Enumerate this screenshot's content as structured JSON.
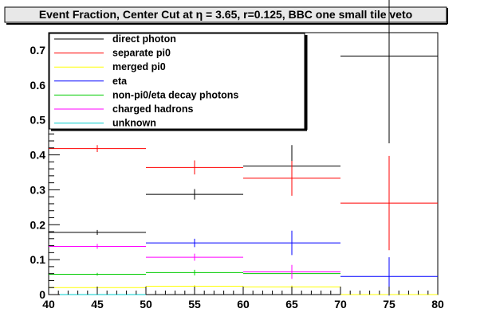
{
  "chart_data": {
    "type": "scatter",
    "title": "Event Fraction, Center Cut at η = 3.65, r=0.125, BBC one small tile veto",
    "xlabel": "",
    "ylabel": "",
    "xlim": [
      40,
      80
    ],
    "ylim": [
      0,
      0.75
    ],
    "x_ticks": [
      40,
      45,
      50,
      55,
      60,
      65,
      70,
      75,
      80
    ],
    "y_ticks": [
      0,
      0.1,
      0.2,
      0.3,
      0.4,
      0.5,
      0.6,
      0.7
    ],
    "x_tick_labels": [
      "40",
      "45",
      "50",
      "55",
      "60",
      "65",
      "70",
      "75",
      "80"
    ],
    "y_tick_labels": [
      "0",
      "0.1",
      "0.2",
      "0.3",
      "0.4",
      "0.5",
      "0.6",
      "0.7"
    ],
    "grid": false,
    "legend_position": "top-left",
    "bins": [
      {
        "x": 45,
        "xerr": 5
      },
      {
        "x": 55,
        "xerr": 5
      },
      {
        "x": 65,
        "xerr": 5
      },
      {
        "x": 75,
        "xerr": 5
      }
    ],
    "series": [
      {
        "name": "direct photon",
        "color": "#000000",
        "values": [
          0.178,
          0.287,
          0.368,
          0.683
        ],
        "errors": [
          0.007,
          0.015,
          0.06,
          0.25
        ]
      },
      {
        "name": "separate pi0",
        "color": "#ff0000",
        "values": [
          0.418,
          0.364,
          0.333,
          0.262
        ],
        "errors": [
          0.01,
          0.02,
          0.05,
          0.135
        ]
      },
      {
        "name": "merged pi0",
        "color": "#ffff00",
        "values": [
          0.02,
          0.024,
          0.022,
          0.0
        ],
        "errors": [
          0.003,
          0.003,
          0.004,
          0.0
        ]
      },
      {
        "name": "eta",
        "color": "#0000ff",
        "values": [
          null,
          0.148,
          0.148,
          0.052
        ],
        "errors": [
          0,
          0.012,
          0.035,
          0.055
        ]
      },
      {
        "name": "non-pi0/eta decay photons",
        "color": "#00cc00",
        "values": [
          0.058,
          0.063,
          0.06,
          null
        ],
        "errors": [
          0.004,
          0.008,
          0.01,
          0
        ]
      },
      {
        "name": "charged hadrons",
        "color": "#ff00ff",
        "values": [
          0.138,
          0.107,
          0.065,
          null
        ],
        "errors": [
          0.007,
          0.01,
          0.02,
          0
        ]
      },
      {
        "name": "unknown",
        "color": "#00cccc",
        "values": [
          0.0,
          null,
          null,
          null
        ],
        "errors": [
          0,
          0,
          0,
          0
        ]
      }
    ]
  }
}
